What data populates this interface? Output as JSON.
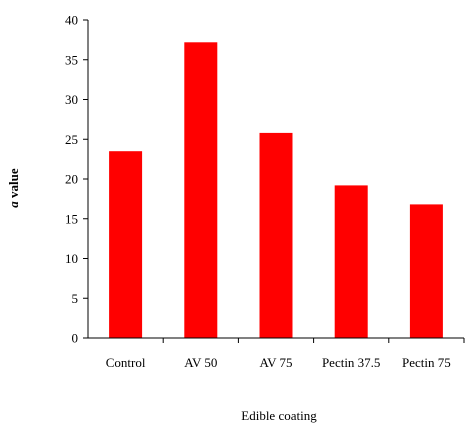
{
  "chart_data": {
    "type": "bar",
    "title": "",
    "xlabel": "Edible coating",
    "ylabel_italic": "a",
    "ylabel_rest": " value",
    "categories": [
      "Control",
      "AV 50",
      "AV 75",
      "Pectin 37.5",
      "Pectin 75"
    ],
    "values": [
      23.5,
      37.2,
      25.8,
      19.2,
      16.8
    ],
    "ylim": [
      0,
      40
    ],
    "yticks": [
      "0",
      "5",
      "10",
      "15",
      "20",
      "25",
      "30",
      "35",
      "40"
    ],
    "grid": false,
    "legend": "none",
    "bar_color": "#ff0000"
  }
}
